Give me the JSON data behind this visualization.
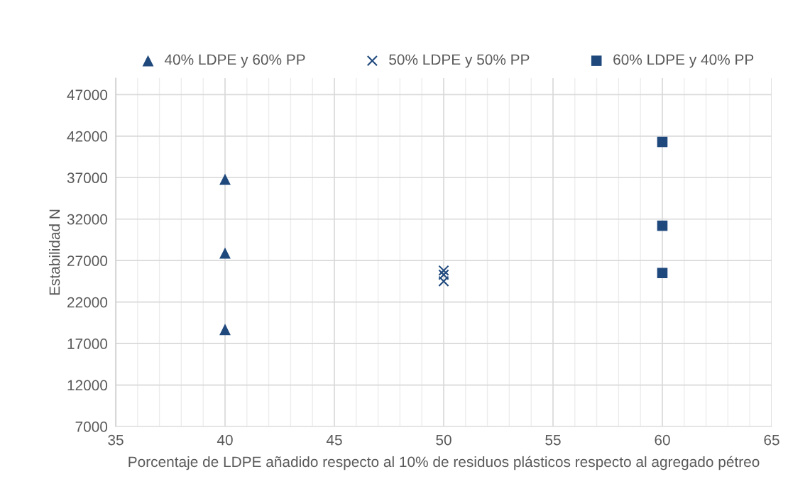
{
  "chart_data": {
    "type": "scatter",
    "xlabel": "Porcentaje de LDPE añadido respecto al 10% de residuos plásticos respecto al agregado pétreo",
    "ylabel": "Estabilidad N",
    "xlim": [
      35,
      65
    ],
    "xticks": [
      35,
      40,
      45,
      50,
      55,
      60,
      65
    ],
    "ylim": [
      7000,
      49000
    ],
    "yticks": [
      7000,
      12000,
      17000,
      22000,
      27000,
      32000,
      37000,
      42000,
      47000
    ],
    "grid": true,
    "legend": "top",
    "series": [
      {
        "name": "40% LDPE y 60% PP",
        "color": "#1f497d",
        "marker": "triangle",
        "x": [
          40,
          40,
          40
        ],
        "values": [
          36800,
          27900,
          18700
        ]
      },
      {
        "name": "50% LDPE y 50% PP",
        "color": "#1f497d",
        "marker": "cross",
        "x": [
          50,
          50,
          50
        ],
        "values": [
          25800,
          25300,
          24500
        ]
      },
      {
        "name": "60% LDPE y 40% PP",
        "color": "#1f497d",
        "marker": "square",
        "x": [
          60,
          60,
          60
        ],
        "values": [
          41300,
          31200,
          25500
        ]
      }
    ]
  }
}
